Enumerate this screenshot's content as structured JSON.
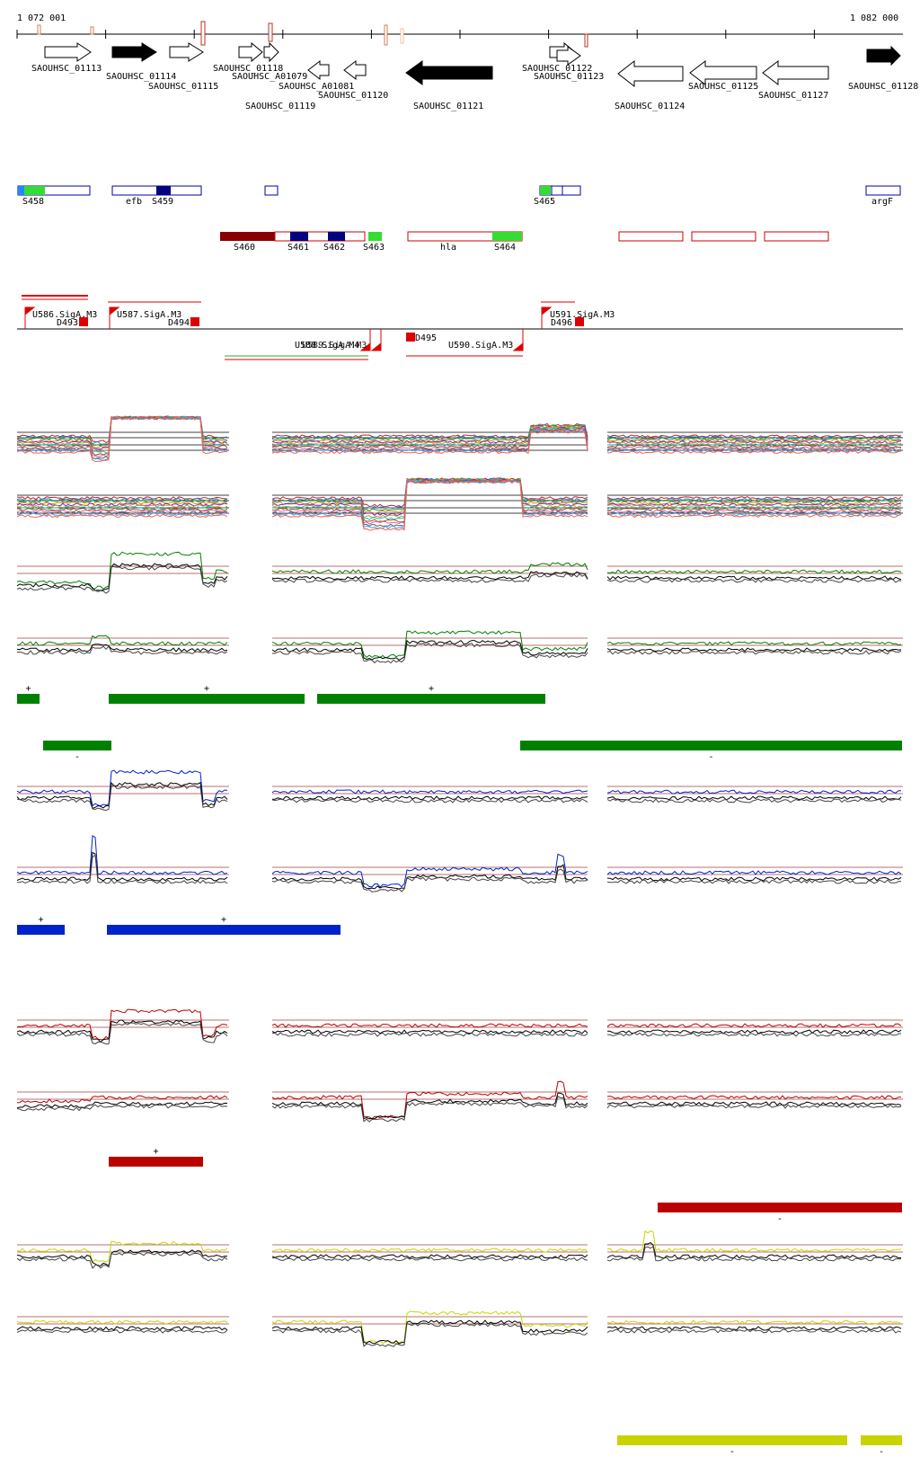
{
  "axis": {
    "start_label": "1 072 001",
    "end_label": "1 082 000"
  },
  "genes": [
    {
      "id": "g01113",
      "name": "SAOUHSC_01113",
      "strand": "+",
      "fill": "white"
    },
    {
      "id": "g01114",
      "name": "SAOUHSC_01114",
      "strand": "+",
      "fill": "black"
    },
    {
      "id": "g01115",
      "name": "SAOUHSC_01115",
      "strand": "+",
      "fill": "white"
    },
    {
      "id": "g01118",
      "name": "SAOUHSC_01118",
      "strand": "+",
      "fill": "white"
    },
    {
      "id": "gA01079",
      "name": "SAOUHSC_A01079",
      "strand": "+",
      "fill": "white"
    },
    {
      "id": "g01119",
      "name": "SAOUHSC_01119",
      "strand": "+",
      "fill": "white"
    },
    {
      "id": "gA01081",
      "name": "SAOUHSC_A01081",
      "strand": "-",
      "fill": "white"
    },
    {
      "id": "g01120",
      "name": "SAOUHSC_01120",
      "strand": "-",
      "fill": "white"
    },
    {
      "id": "g01121",
      "name": "SAOUHSC_01121",
      "strand": "-",
      "fill": "black"
    },
    {
      "id": "g01122",
      "name": "SAOUHSC_01122",
      "strand": "+",
      "fill": "white"
    },
    {
      "id": "g01123",
      "name": "SAOUHSC_01123",
      "strand": "+",
      "fill": "white"
    },
    {
      "id": "g01124",
      "name": "SAOUHSC_01124",
      "strand": "-",
      "fill": "white"
    },
    {
      "id": "g01125",
      "name": "SAOUHSC_01125",
      "strand": "-",
      "fill": "white"
    },
    {
      "id": "g01127",
      "name": "SAOUHSC_01127",
      "strand": "-",
      "fill": "white"
    },
    {
      "id": "g01128",
      "name": "SAOUHSC_01128",
      "strand": "+",
      "fill": "black"
    }
  ],
  "features_plus": [
    {
      "id": "S458",
      "label": "S458"
    },
    {
      "id": "efb",
      "label": "efb"
    },
    {
      "id": "S459",
      "label": "S459"
    },
    {
      "id": "S465",
      "label": "S465"
    },
    {
      "id": "argF",
      "label": "argF"
    }
  ],
  "features_minus": [
    {
      "id": "S460",
      "label": "S460"
    },
    {
      "id": "S461",
      "label": "S461"
    },
    {
      "id": "S462",
      "label": "S462"
    },
    {
      "id": "S463",
      "label": "S463"
    },
    {
      "id": "hla",
      "label": "hla"
    },
    {
      "id": "S464",
      "label": "S464"
    }
  ],
  "promoters_plus": [
    {
      "id": "U586",
      "label": "U586.SigA.M3"
    },
    {
      "id": "U587",
      "label": "U587.SigA.M3"
    },
    {
      "id": "U591",
      "label": "U591.SigA.M3"
    }
  ],
  "terminators_plus": [
    {
      "id": "D493",
      "label": "D493"
    },
    {
      "id": "D494",
      "label": "D494"
    },
    {
      "id": "D496",
      "label": "D496"
    }
  ],
  "promoters_minus": [
    {
      "id": "U588",
      "label": "U588.SigA.M4"
    },
    {
      "id": "U589",
      "label": "U589.SigA.M3"
    },
    {
      "id": "U590",
      "label": "U590.SigA.M3"
    }
  ],
  "terminators_minus": [
    {
      "id": "D495",
      "label": "D495"
    }
  ],
  "panel_colors": {
    "green": "#008000",
    "blue": "#0022cc",
    "red": "#bb0000",
    "yellow": "#c8d400"
  },
  "segment_signs": {
    "plus": "+",
    "minus": "-"
  }
}
